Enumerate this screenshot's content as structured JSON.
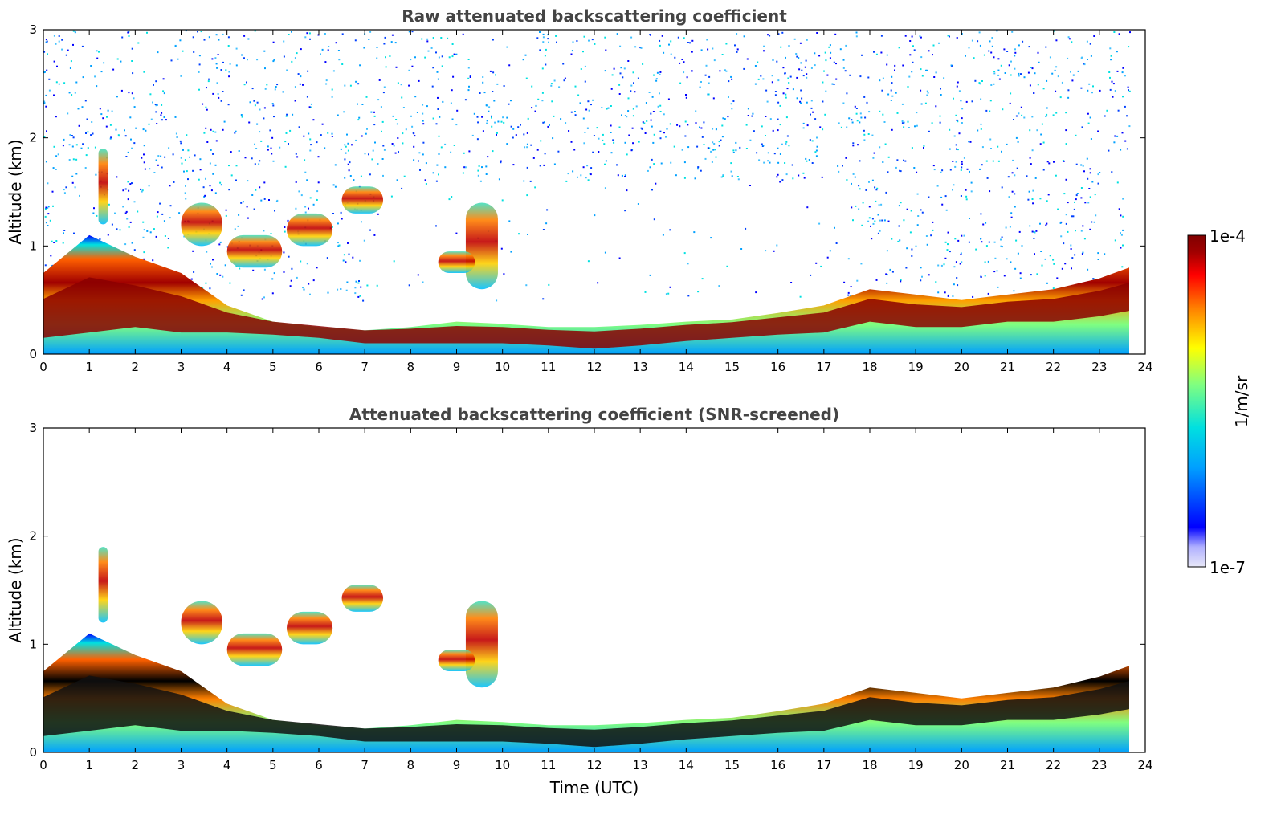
{
  "chart_data": [
    {
      "type": "heatmap",
      "title": "Raw attenuated backscattering coefficient",
      "xlabel": "",
      "ylabel": "Altitude (km)",
      "xlim": [
        0,
        24
      ],
      "ylim": [
        0,
        3
      ],
      "xticks": [
        "0",
        "1",
        "2",
        "3",
        "4",
        "5",
        "6",
        "7",
        "8",
        "9",
        "10",
        "11",
        "12",
        "13",
        "14",
        "15",
        "16",
        "17",
        "18",
        "19",
        "20",
        "21",
        "22",
        "23",
        "24"
      ],
      "yticks": [
        "0",
        "1",
        "2",
        "3"
      ],
      "data_end_hour": 23.65,
      "layer_profile": [
        {
          "t": 0,
          "base": 0.15,
          "top": 0.75
        },
        {
          "t": 1,
          "base": 0.2,
          "top": 1.1
        },
        {
          "t": 2,
          "base": 0.25,
          "top": 0.9
        },
        {
          "t": 3,
          "base": 0.2,
          "top": 0.75
        },
        {
          "t": 4,
          "base": 0.2,
          "top": 0.45
        },
        {
          "t": 5,
          "base": 0.18,
          "top": 0.3
        },
        {
          "t": 6,
          "base": 0.15,
          "top": 0.25
        },
        {
          "t": 7,
          "base": 0.1,
          "top": 0.22
        },
        {
          "t": 8,
          "base": 0.1,
          "top": 0.25
        },
        {
          "t": 9,
          "base": 0.1,
          "top": 0.3
        },
        {
          "t": 10,
          "base": 0.1,
          "top": 0.28
        },
        {
          "t": 11,
          "base": 0.08,
          "top": 0.25
        },
        {
          "t": 12,
          "base": 0.05,
          "top": 0.25
        },
        {
          "t": 13,
          "base": 0.08,
          "top": 0.27
        },
        {
          "t": 14,
          "base": 0.12,
          "top": 0.3
        },
        {
          "t": 15,
          "base": 0.15,
          "top": 0.32
        },
        {
          "t": 16,
          "base": 0.18,
          "top": 0.38
        },
        {
          "t": 17,
          "base": 0.2,
          "top": 0.45
        },
        {
          "t": 18,
          "base": 0.3,
          "top": 0.6
        },
        {
          "t": 19,
          "base": 0.25,
          "top": 0.55
        },
        {
          "t": 20,
          "base": 0.25,
          "top": 0.5
        },
        {
          "t": 21,
          "base": 0.3,
          "top": 0.55
        },
        {
          "t": 22,
          "base": 0.3,
          "top": 0.6
        },
        {
          "t": 23,
          "base": 0.35,
          "top": 0.7
        },
        {
          "t": 23.65,
          "base": 0.4,
          "top": 0.8
        }
      ],
      "cloud_patches": [
        {
          "t0": 3.0,
          "t1": 3.9,
          "z0": 1.0,
          "z1": 1.4
        },
        {
          "t0": 4.0,
          "t1": 5.2,
          "z0": 0.8,
          "z1": 1.1
        },
        {
          "t0": 5.3,
          "t1": 6.3,
          "z0": 1.0,
          "z1": 1.3
        },
        {
          "t0": 6.5,
          "t1": 7.4,
          "z0": 1.3,
          "z1": 1.55
        },
        {
          "t0": 9.2,
          "t1": 9.9,
          "z0": 0.6,
          "z1": 1.4
        },
        {
          "t0": 8.6,
          "t1": 9.4,
          "z0": 0.75,
          "z1": 0.95
        },
        {
          "t0": 1.2,
          "t1": 1.4,
          "z0": 1.2,
          "z1": 1.9
        }
      ]
    },
    {
      "type": "heatmap",
      "title": "Attenuated backscattering coefficient (SNR-screened)",
      "xlabel": "Time (UTC)",
      "ylabel": "Altitude (km)",
      "xlim": [
        0,
        24
      ],
      "ylim": [
        0,
        3
      ],
      "xticks": [
        "0",
        "1",
        "2",
        "3",
        "4",
        "5",
        "6",
        "7",
        "8",
        "9",
        "10",
        "11",
        "12",
        "13",
        "14",
        "15",
        "16",
        "17",
        "18",
        "19",
        "20",
        "21",
        "22",
        "23",
        "24"
      ],
      "yticks": [
        "0",
        "1",
        "2",
        "3"
      ],
      "data_end_hour": 23.65,
      "screening": "SNR-screened"
    }
  ],
  "colorbar": {
    "max_label": "1e-4",
    "min_label": "1e-7",
    "unit_label": "1/m/sr",
    "colors": [
      "#e8e8f8",
      "#b0b0ff",
      "#0000ff",
      "#00a0ff",
      "#00e0e0",
      "#80ff80",
      "#ffff00",
      "#ff8000",
      "#ff0000",
      "#a00000",
      "#800000"
    ]
  }
}
